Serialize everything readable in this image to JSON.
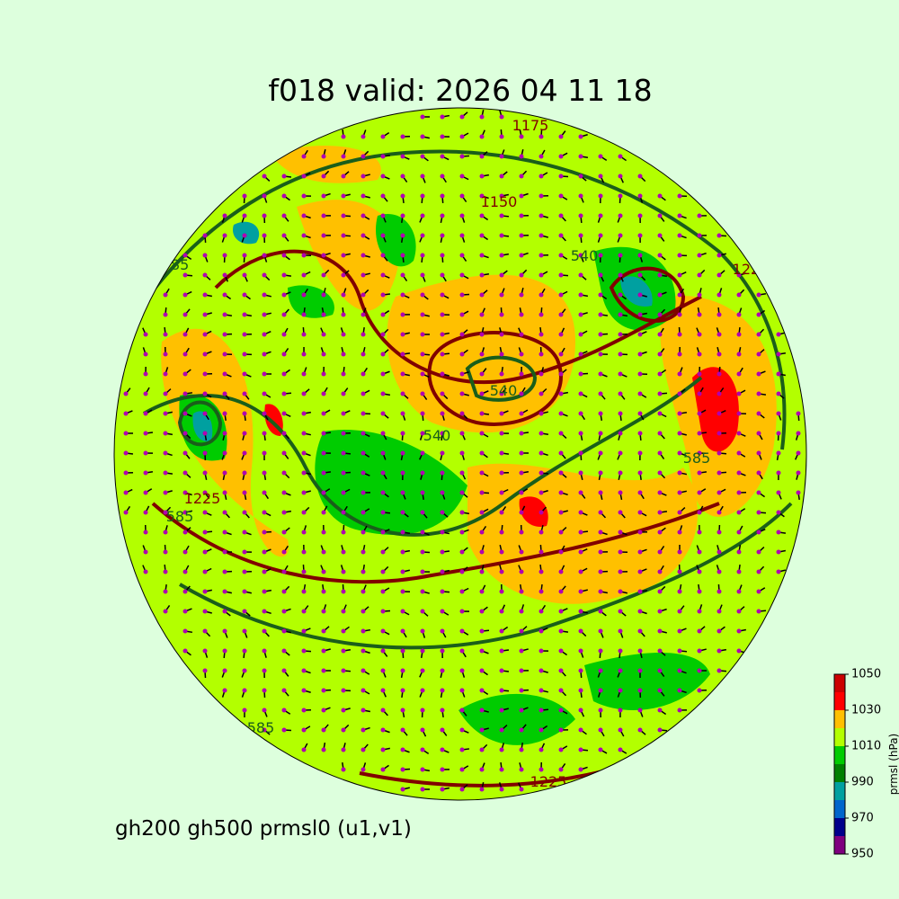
{
  "title": "f018 valid:   2026 04 11 18",
  "subtitle": "gh200 gh500 prmsl0 (u1,v1)",
  "contour_labels": [
    "540",
    "540",
    "540",
    "585",
    "585",
    "585",
    "585",
    "1225",
    "1225",
    "1175",
    "1150",
    "1225"
  ],
  "colorbar": {
    "label": "prmsl (hPa)",
    "lim": [
      950,
      1050
    ],
    "ticks": [
      950,
      970,
      990,
      1010,
      1030,
      1050
    ],
    "colors": [
      "#7f007f",
      "#00008b",
      "#0066cc",
      "#00a0a0",
      "#008000",
      "#00cc00",
      "#b3ff00",
      "#ffc000",
      "#ff0000",
      "#cc0000"
    ]
  }
}
